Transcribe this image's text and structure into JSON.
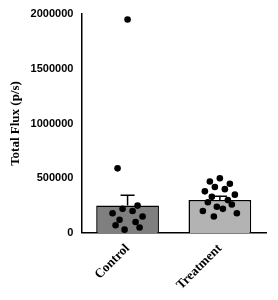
{
  "chart_data": {
    "type": "bar",
    "y_label": "Total Flux (p/s)",
    "categories": [
      "Control",
      "Treatment"
    ],
    "values": [
      250000,
      300000
    ],
    "errors": [
      95000,
      35000
    ],
    "colors": [
      "#7f7f7f",
      "#b3b3b3"
    ],
    "points": [
      [
        1950000,
        590000,
        250000,
        220000,
        200000,
        180000,
        150000,
        120000,
        100000,
        70000,
        50000,
        30000
      ],
      [
        500000,
        470000,
        450000,
        420000,
        400000,
        380000,
        350000,
        330000,
        300000,
        280000,
        260000,
        240000,
        220000,
        200000,
        180000,
        150000
      ]
    ],
    "ylim": [
      0,
      2000000
    ],
    "yticks": [
      0,
      500000,
      1000000,
      1500000,
      2000000
    ]
  }
}
